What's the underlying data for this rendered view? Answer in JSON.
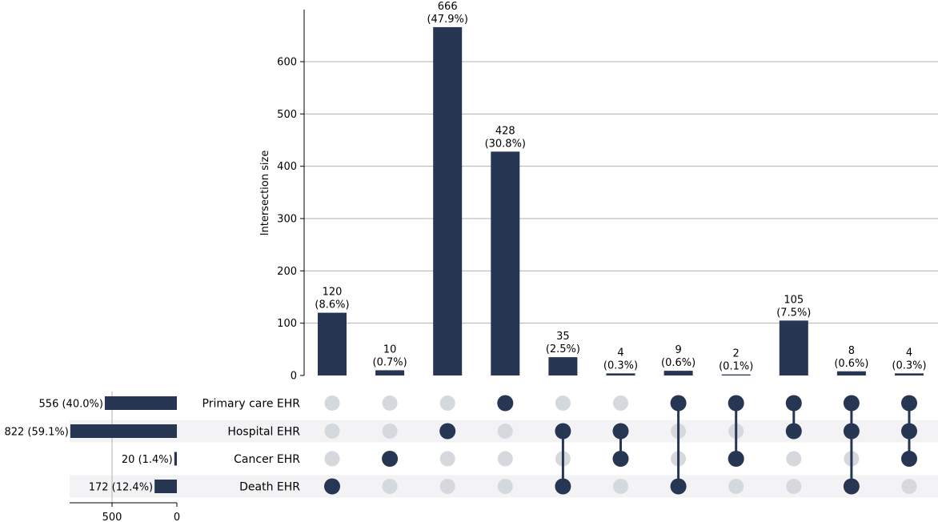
{
  "chart_data": {
    "type": "upset",
    "ylabel": "Intersection size",
    "ylim": [
      0,
      700
    ],
    "y_ticks": [
      0,
      100,
      200,
      300,
      400,
      500,
      600
    ],
    "grid": true,
    "bar_color": "#273652",
    "inactive_dot_color": "#d5d8dc",
    "stripe_color": "#f3f3f5",
    "sets": [
      {
        "name": "Primary care EHR",
        "size": 556,
        "label": "556 (40.0%)"
      },
      {
        "name": "Hospital EHR",
        "size": 822,
        "label": "822 (59.1%)"
      },
      {
        "name": "Cancer EHR",
        "size": 20,
        "label": "20 (1.4%)"
      },
      {
        "name": "Death EHR",
        "size": 172,
        "label": "172 (12.4%)"
      }
    ],
    "set_size_ticks": [
      500,
      0
    ],
    "intersections": [
      {
        "sets": [
          "Death EHR"
        ],
        "value": 120,
        "label": "120",
        "pct": "(8.6%)"
      },
      {
        "sets": [
          "Cancer EHR"
        ],
        "value": 10,
        "label": "10",
        "pct": "(0.7%)"
      },
      {
        "sets": [
          "Hospital EHR"
        ],
        "value": 666,
        "label": "666",
        "pct": "(47.9%)"
      },
      {
        "sets": [
          "Primary care EHR"
        ],
        "value": 428,
        "label": "428",
        "pct": "(30.8%)"
      },
      {
        "sets": [
          "Hospital EHR",
          "Death EHR"
        ],
        "value": 35,
        "label": "35",
        "pct": "(2.5%)"
      },
      {
        "sets": [
          "Hospital EHR",
          "Cancer EHR"
        ],
        "value": 4,
        "label": "4",
        "pct": "(0.3%)"
      },
      {
        "sets": [
          "Primary care EHR",
          "Death EHR"
        ],
        "value": 9,
        "label": "9",
        "pct": "(0.6%)"
      },
      {
        "sets": [
          "Primary care EHR",
          "Cancer EHR"
        ],
        "value": 2,
        "label": "2",
        "pct": "(0.1%)"
      },
      {
        "sets": [
          "Primary care EHR",
          "Hospital EHR"
        ],
        "value": 105,
        "label": "105",
        "pct": "(7.5%)"
      },
      {
        "sets": [
          "Primary care EHR",
          "Hospital EHR",
          "Death EHR"
        ],
        "value": 8,
        "label": "8",
        "pct": "(0.6%)"
      },
      {
        "sets": [
          "Primary care EHR",
          "Hospital EHR",
          "Cancer EHR"
        ],
        "value": 4,
        "label": "4",
        "pct": "(0.3%)"
      }
    ]
  }
}
